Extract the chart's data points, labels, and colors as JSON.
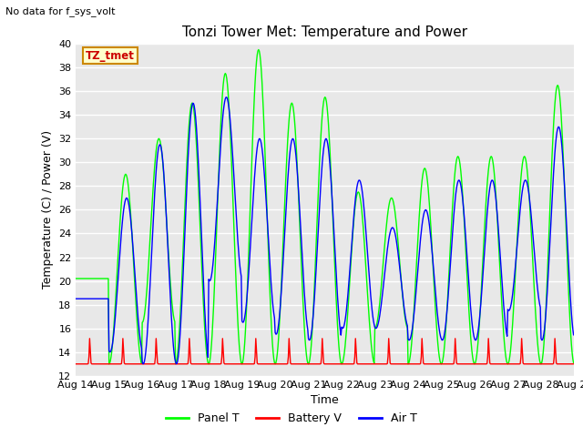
{
  "title": "Tonzi Tower Met: Temperature and Power",
  "top_left_text": "No data for f_sys_volt",
  "ylabel": "Temperature (C) / Power (V)",
  "xlabel": "Time",
  "ylim": [
    12,
    40
  ],
  "yticks": [
    12,
    14,
    16,
    18,
    20,
    22,
    24,
    26,
    28,
    30,
    32,
    34,
    36,
    38,
    40
  ],
  "xtick_labels": [
    "Aug 14",
    "Aug 15",
    "Aug 16",
    "Aug 17",
    "Aug 18",
    "Aug 19",
    "Aug 20",
    "Aug 21",
    "Aug 22",
    "Aug 23",
    "Aug 24",
    "Aug 25",
    "Aug 26",
    "Aug 27",
    "Aug 28",
    "Aug 29"
  ],
  "panel_t_color": "#00FF00",
  "battery_v_color": "#FF0000",
  "air_t_color": "#0000FF",
  "plot_bg_color": "#E8E8E8",
  "fig_bg_color": "#FFFFFF",
  "legend_panel_t": "Panel T",
  "legend_battery_v": "Battery V",
  "legend_air_t": "Air T",
  "annotation_label": "TZ_tmet",
  "annotation_color": "#CC0000",
  "annotation_bg": "#FFFFCC",
  "annotation_border": "#CC8800",
  "panel_t_peaks": [
    20.2,
    29.0,
    32.0,
    35.0,
    37.5,
    39.5,
    35.0,
    35.5,
    27.5,
    27.0,
    29.5,
    30.5,
    30.5,
    30.5,
    36.5
  ],
  "panel_t_troughs": [
    20.2,
    13.0,
    16.5,
    13.0,
    13.0,
    13.0,
    13.0,
    13.0,
    13.0,
    16.0,
    13.0,
    13.0,
    13.0,
    13.0,
    13.0
  ],
  "air_t_peaks": [
    18.5,
    27.0,
    31.5,
    35.0,
    35.5,
    32.0,
    32.0,
    32.0,
    28.5,
    24.5,
    26.0,
    28.5,
    28.5,
    28.5,
    33.0
  ],
  "air_t_troughs": [
    18.5,
    14.0,
    13.0,
    13.0,
    20.0,
    16.5,
    15.5,
    15.0,
    16.0,
    16.0,
    15.0,
    15.0,
    15.0,
    17.5,
    15.0
  ],
  "battery_base": 13.0,
  "battery_spike": 2.2,
  "title_fontsize": 11,
  "tick_fontsize": 8,
  "label_fontsize": 9,
  "legend_fontsize": 9
}
